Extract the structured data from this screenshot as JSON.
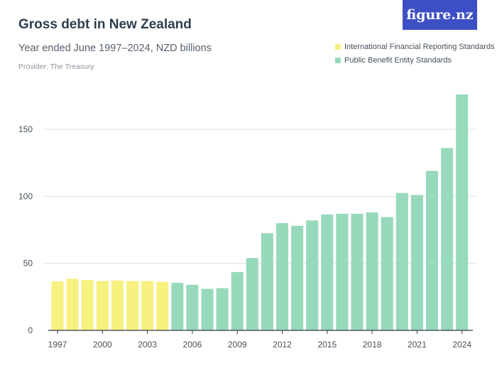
{
  "header": {
    "title": "Gross debt in New Zealand",
    "subtitle": "Year ended June 1997–2024, NZD billions",
    "provider": "Provider: The Treasury",
    "logo_text": "figure.nz"
  },
  "chart_data": {
    "type": "bar",
    "title": "Gross debt in New Zealand",
    "subtitle": "Year ended June 1997–2024, NZD billions",
    "xlabel": "",
    "ylabel": "",
    "ylim": [
      0,
      180
    ],
    "yticks": [
      0,
      50,
      100,
      150
    ],
    "xtick_labels": [
      "1997",
      "2000",
      "2003",
      "2006",
      "2009",
      "2012",
      "2015",
      "2018",
      "2021",
      "2024"
    ],
    "grid": true,
    "legend_position": "top-right",
    "categories": [
      "1997",
      "1998",
      "1999",
      "2000",
      "2001",
      "2002",
      "2003",
      "2004",
      "2005",
      "2006",
      "2007",
      "2008",
      "2009",
      "2010",
      "2011",
      "2012",
      "2013",
      "2014",
      "2015",
      "2016",
      "2017",
      "2018",
      "2019",
      "2020",
      "2021",
      "2022",
      "2023",
      "2024"
    ],
    "series": [
      {
        "name": "International Financial Reporting Standards",
        "color": "#f7f17f",
        "values": [
          36.5,
          38.5,
          37.5,
          36.8,
          37.2,
          36.8,
          36.8,
          36.2,
          null,
          null,
          null,
          null,
          null,
          null,
          null,
          null,
          null,
          null,
          null,
          null,
          null,
          null,
          null,
          null,
          null,
          null,
          null,
          null
        ]
      },
      {
        "name": "Public Benefit Entity Standards",
        "color": "#97d9bb",
        "values": [
          null,
          null,
          null,
          null,
          null,
          null,
          null,
          null,
          35.5,
          34,
          31,
          31.5,
          43.5,
          54,
          72.5,
          80,
          78,
          82,
          86.5,
          87,
          87,
          88,
          84.5,
          102.5,
          101,
          119,
          136,
          176
        ]
      }
    ]
  }
}
